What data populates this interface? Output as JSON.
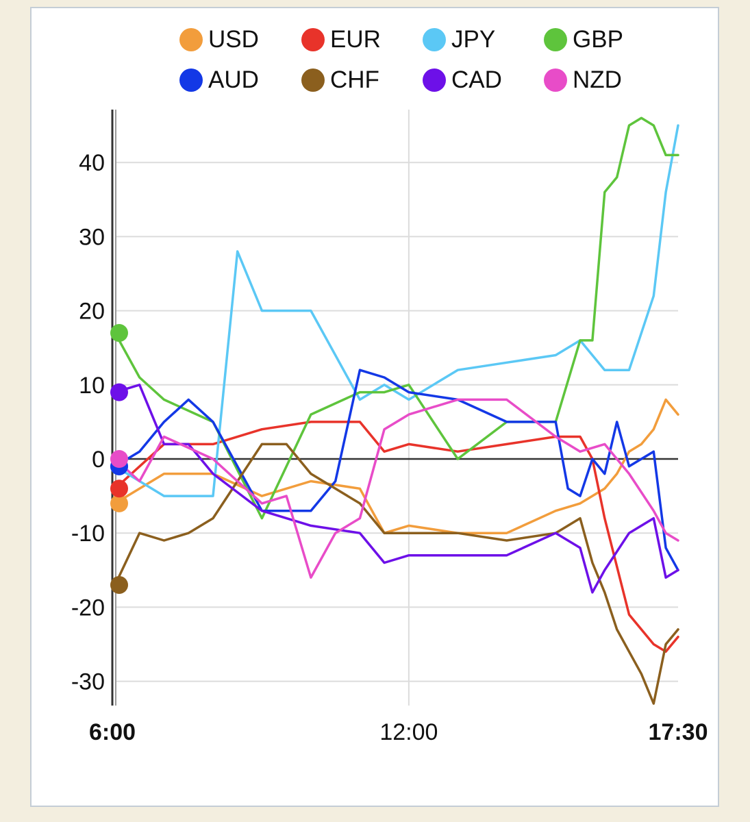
{
  "chart_data": {
    "type": "line",
    "title": "",
    "xlabel": "",
    "ylabel": "",
    "x_ticks": [
      "6:00",
      "12:00",
      "17:30"
    ],
    "x_range": [
      "6:00",
      "17:30"
    ],
    "y_ticks": [
      -30,
      -20,
      -10,
      0,
      10,
      20,
      30,
      40
    ],
    "ylim": [
      -33.5,
      47
    ],
    "grid": true,
    "legend_position": "top",
    "series": [
      {
        "name": "USD",
        "color": "#f29d3c",
        "x": [
          "6:00",
          "7:00",
          "8:00",
          "9:00",
          "10:00",
          "11:00",
          "11:30",
          "12:00",
          "13:00",
          "14:00",
          "15:00",
          "15:30",
          "16:00",
          "16:15",
          "16:30",
          "16:45",
          "17:00",
          "17:15",
          "17:30"
        ],
        "values": [
          -6,
          -2,
          -2,
          -5,
          -3,
          -4,
          -10,
          -9,
          -10,
          -10,
          -7,
          -6,
          -4,
          -2,
          1,
          2,
          4,
          8,
          6
        ]
      },
      {
        "name": "EUR",
        "color": "#e8332a",
        "x": [
          "6:00",
          "7:00",
          "8:00",
          "9:00",
          "10:00",
          "11:00",
          "11:30",
          "12:00",
          "13:00",
          "14:00",
          "15:00",
          "15:30",
          "15:45",
          "16:00",
          "16:30",
          "17:00",
          "17:15",
          "17:30"
        ],
        "values": [
          -4,
          2,
          2,
          4,
          5,
          5,
          1,
          2,
          1,
          2,
          3,
          3,
          0,
          -8,
          -21,
          -25,
          -26,
          -24
        ]
      },
      {
        "name": "JPY",
        "color": "#5bc8f5",
        "x": [
          "6:00",
          "7:00",
          "8:00",
          "8:30",
          "9:00",
          "10:00",
          "11:00",
          "11:30",
          "12:00",
          "13:00",
          "14:00",
          "15:00",
          "15:30",
          "16:00",
          "16:30",
          "17:00",
          "17:15",
          "17:30"
        ],
        "values": [
          -1,
          -5,
          -5,
          28,
          20,
          20,
          8,
          10,
          8,
          12,
          13,
          14,
          16,
          12,
          12,
          22,
          36,
          45
        ]
      },
      {
        "name": "GBP",
        "color": "#5ec43c",
        "x": [
          "6:00",
          "6:30",
          "7:00",
          "8:00",
          "9:00",
          "10:00",
          "11:00",
          "11:30",
          "12:00",
          "13:00",
          "14:00",
          "15:00",
          "15:30",
          "15:45",
          "16:00",
          "16:15",
          "16:30",
          "16:45",
          "17:00",
          "17:15",
          "17:30"
        ],
        "values": [
          17,
          11,
          8,
          5,
          -8,
          6,
          9,
          9,
          10,
          0,
          5,
          5,
          16,
          16,
          36,
          38,
          45,
          46,
          45,
          41,
          41
        ]
      },
      {
        "name": "AUD",
        "color": "#1338e6",
        "x": [
          "6:00",
          "6:30",
          "7:00",
          "7:30",
          "8:00",
          "9:00",
          "10:00",
          "10:30",
          "11:00",
          "11:30",
          "12:00",
          "13:00",
          "14:00",
          "15:00",
          "15:15",
          "15:30",
          "15:45",
          "16:00",
          "16:15",
          "16:30",
          "17:00",
          "17:15",
          "17:30"
        ],
        "values": [
          -1,
          1,
          5,
          8,
          5,
          -7,
          -7,
          -3,
          12,
          11,
          9,
          8,
          5,
          5,
          -4,
          -5,
          0,
          -2,
          5,
          -1,
          1,
          -12,
          -15
        ]
      },
      {
        "name": "CHF",
        "color": "#8b5f1e",
        "x": [
          "6:00",
          "6:30",
          "7:00",
          "7:30",
          "8:00",
          "9:00",
          "9:30",
          "10:00",
          "11:00",
          "11:30",
          "12:00",
          "13:00",
          "14:00",
          "15:00",
          "15:30",
          "15:45",
          "16:00",
          "16:15",
          "16:30",
          "16:45",
          "17:00",
          "17:15",
          "17:30"
        ],
        "values": [
          -17,
          -10,
          -11,
          -10,
          -8,
          2,
          2,
          -2,
          -6,
          -10,
          -10,
          -10,
          -11,
          -10,
          -8,
          -14,
          -18,
          -23,
          -26,
          -29,
          -33,
          -25,
          -23
        ]
      },
      {
        "name": "CAD",
        "color": "#6d10e8",
        "x": [
          "6:00",
          "6:30",
          "7:00",
          "7:30",
          "8:00",
          "9:00",
          "10:00",
          "11:00",
          "11:30",
          "12:00",
          "13:00",
          "14:00",
          "15:00",
          "15:30",
          "15:45",
          "16:00",
          "16:30",
          "17:00",
          "17:15",
          "17:30"
        ],
        "values": [
          9,
          10,
          2,
          2,
          -2,
          -7,
          -9,
          -10,
          -14,
          -13,
          -13,
          -13,
          -10,
          -12,
          -18,
          -15,
          -10,
          -8,
          -16,
          -15
        ]
      },
      {
        "name": "NZD",
        "color": "#e84cc8",
        "x": [
          "6:00",
          "6:30",
          "7:00",
          "8:00",
          "9:00",
          "9:30",
          "10:00",
          "10:30",
          "11:00",
          "11:30",
          "12:00",
          "13:00",
          "14:00",
          "15:00",
          "15:30",
          "16:00",
          "16:30",
          "17:00",
          "17:15",
          "17:30"
        ],
        "values": [
          0,
          -3,
          3,
          0,
          -6,
          -5,
          -16,
          -10,
          -8,
          4,
          6,
          8,
          8,
          3,
          1,
          2,
          -2,
          -7,
          -10,
          -11
        ]
      }
    ]
  }
}
